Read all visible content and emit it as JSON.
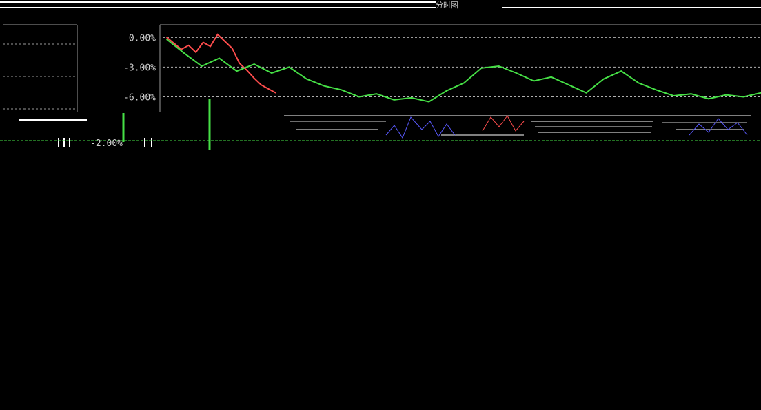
{
  "window": {
    "title": "分时图"
  },
  "colors": {
    "background": "#000000",
    "grid": "#b0b0b0",
    "price_line": "#ff4d4d",
    "avg_line": "#46e046",
    "volume_up": "#46e046",
    "baseline": "#46e046"
  },
  "chart": {
    "y_ticks": [
      "0.00%",
      "-3.00%",
      "-6.00%"
    ],
    "bottom_label": "-2.00%"
  },
  "chart_data": {
    "type": "line",
    "ylim": [
      -7.5,
      1.0
    ],
    "grid": true,
    "y_ticks": [
      "0.00%",
      "-3.00%",
      "-6.00%"
    ],
    "series": [
      {
        "values": [
          0.0,
          -0.6,
          -1.2,
          -0.8,
          -1.5,
          -0.5,
          -0.9,
          0.3,
          -0.4,
          -1.1,
          -2.6,
          -3.3,
          -4.1,
          -4.8,
          -5.2,
          -5.6
        ]
      },
      {
        "values": [
          -0.2,
          -1.6,
          -2.9,
          -2.1,
          -3.4,
          -2.7,
          -3.6,
          -3.0,
          -4.2,
          -4.9,
          -5.3,
          -6.0,
          -5.7,
          -6.3,
          -6.1,
          -6.5,
          -5.4,
          -4.6,
          -3.1,
          -2.9,
          -3.6,
          -4.4,
          -4.0,
          -4.8,
          -5.6,
          -4.2,
          -3.4,
          -4.6,
          -5.3,
          -5.9,
          -5.7,
          -6.2,
          -5.8,
          -6.0,
          -5.6
        ]
      }
    ]
  }
}
